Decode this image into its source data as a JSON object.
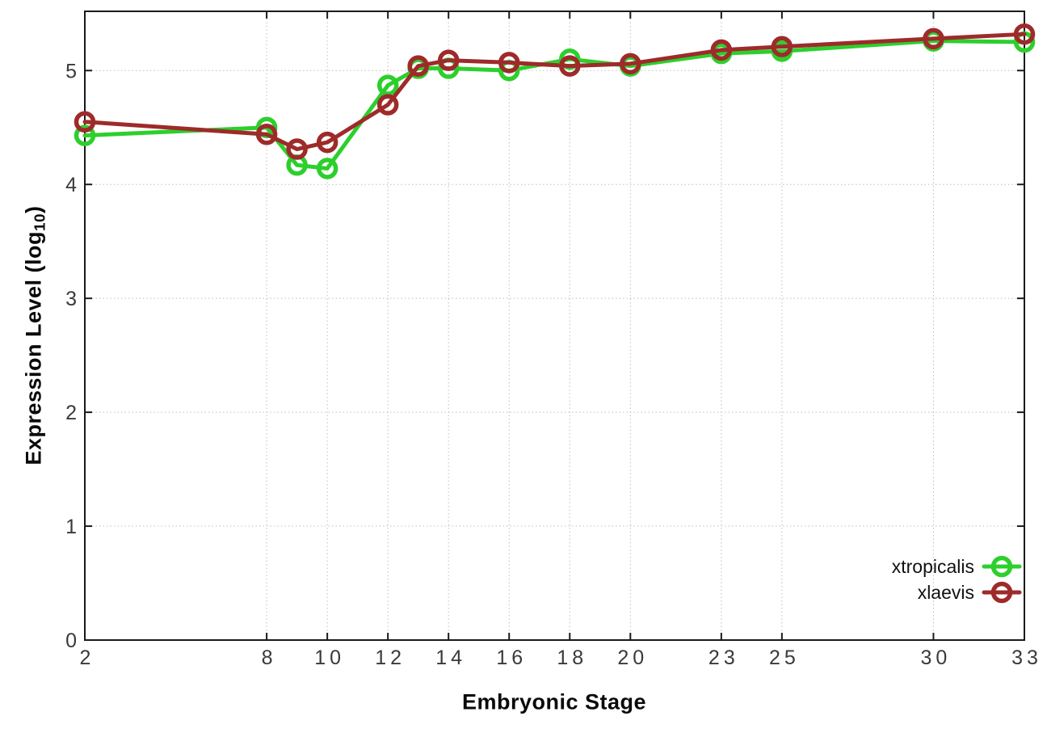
{
  "figure": {
    "xlabel": "Embryonic Stage",
    "ylabel_prefix": "Expression Level (log",
    "ylabel_sub": "10",
    "ylabel_suffix": ")"
  },
  "chart_data": {
    "type": "line",
    "title": "",
    "xlabel": "Embryonic Stage",
    "ylabel": "Expression Level (log10)",
    "x": [
      2,
      8,
      9,
      10,
      12,
      13,
      14,
      16,
      18,
      20,
      23,
      25,
      30,
      33
    ],
    "series": [
      {
        "name": "xtropicalis",
        "color": "#2dcf2d",
        "values": [
          4.43,
          4.5,
          4.17,
          4.14,
          4.87,
          5.02,
          5.02,
          5.0,
          5.1,
          5.04,
          5.15,
          5.17,
          5.26,
          5.25
        ]
      },
      {
        "name": "xlaevis",
        "color": "#9e2a2a",
        "values": [
          4.55,
          4.44,
          4.31,
          4.37,
          4.7,
          5.04,
          5.09,
          5.07,
          5.04,
          5.06,
          5.18,
          5.21,
          5.28,
          5.32
        ]
      }
    ],
    "xticks": [
      2,
      8,
      10,
      12,
      14,
      16,
      18,
      20,
      23,
      25,
      30,
      33
    ],
    "yticks": [
      0,
      1,
      2,
      3,
      4,
      5
    ],
    "xlim": [
      2,
      33
    ],
    "ylim": [
      0,
      5.52
    ],
    "grid": true,
    "grid_color": "#bfbfbf",
    "border_color": "#1a1a1a",
    "tick_label_color": "#3a3a3a",
    "legend_position": "inside lower right",
    "legend_entries": [
      "xtropicalis",
      "xlaevis"
    ],
    "marker": "open-circle"
  }
}
